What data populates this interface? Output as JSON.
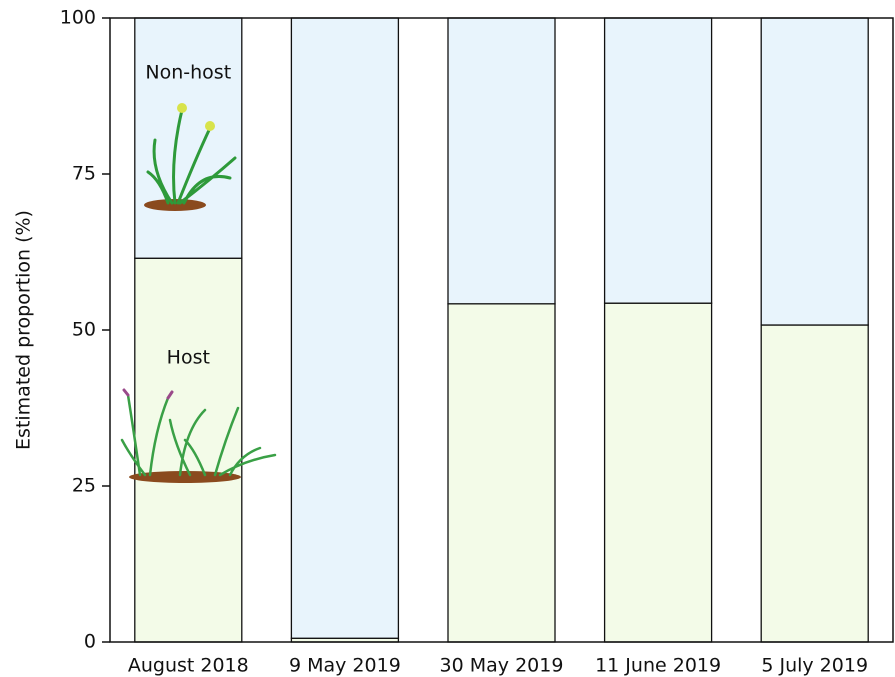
{
  "chart_data": {
    "type": "stacked_bar",
    "y_label": "Estimated proportion (%)",
    "categories": [
      "August 2018",
      "9 May 2019",
      "30 May 2019",
      "11 June 2019",
      "5 July 2019"
    ],
    "series": [
      {
        "name": "Host",
        "color": "#f3fbe8",
        "values": [
          61.5,
          0.6,
          54.2,
          54.3,
          50.8
        ]
      },
      {
        "name": "Non-host",
        "color": "#e8f4fc",
        "values": [
          38.5,
          99.4,
          45.8,
          45.7,
          49.2
        ]
      }
    ],
    "ylim": [
      0,
      100
    ],
    "yticks": [
      0,
      25,
      50,
      75,
      100
    ]
  }
}
